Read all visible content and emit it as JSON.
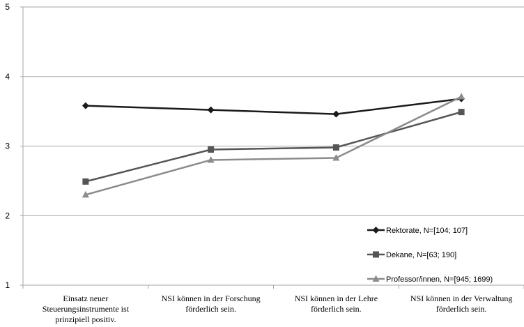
{
  "chart_data": {
    "type": "line",
    "categories": [
      [
        "Einsatz neuer",
        "Steuerungsinstrumente ist",
        "prinzipiell positiv."
      ],
      [
        "NSI können in der Forschung",
        "förderlich sein."
      ],
      [
        "NSI können in der Lehre",
        "förderlich sein."
      ],
      [
        "NSI können in der Verwaltung",
        "förderlich sein."
      ]
    ],
    "series": [
      {
        "name": "Rektorate, N=[104; 107]",
        "values": [
          3.58,
          3.52,
          3.46,
          3.68
        ],
        "color": "#1a1a1a",
        "marker": "diamond"
      },
      {
        "name": "Dekane, N=[63; 190]",
        "values": [
          2.49,
          2.95,
          2.98,
          3.49
        ],
        "color": "#555555",
        "marker": "square"
      },
      {
        "name": "Professor/innen, N=[945; 1699)",
        "values": [
          2.3,
          2.8,
          2.83,
          3.71
        ],
        "color": "#8c8c8c",
        "marker": "triangle"
      }
    ],
    "ylim": [
      1,
      5
    ],
    "yticks": [
      "1",
      "2",
      "3",
      "4",
      "5"
    ],
    "grid": true,
    "legend_position": "bottom-right",
    "title": "",
    "xlabel": "",
    "ylabel": ""
  }
}
